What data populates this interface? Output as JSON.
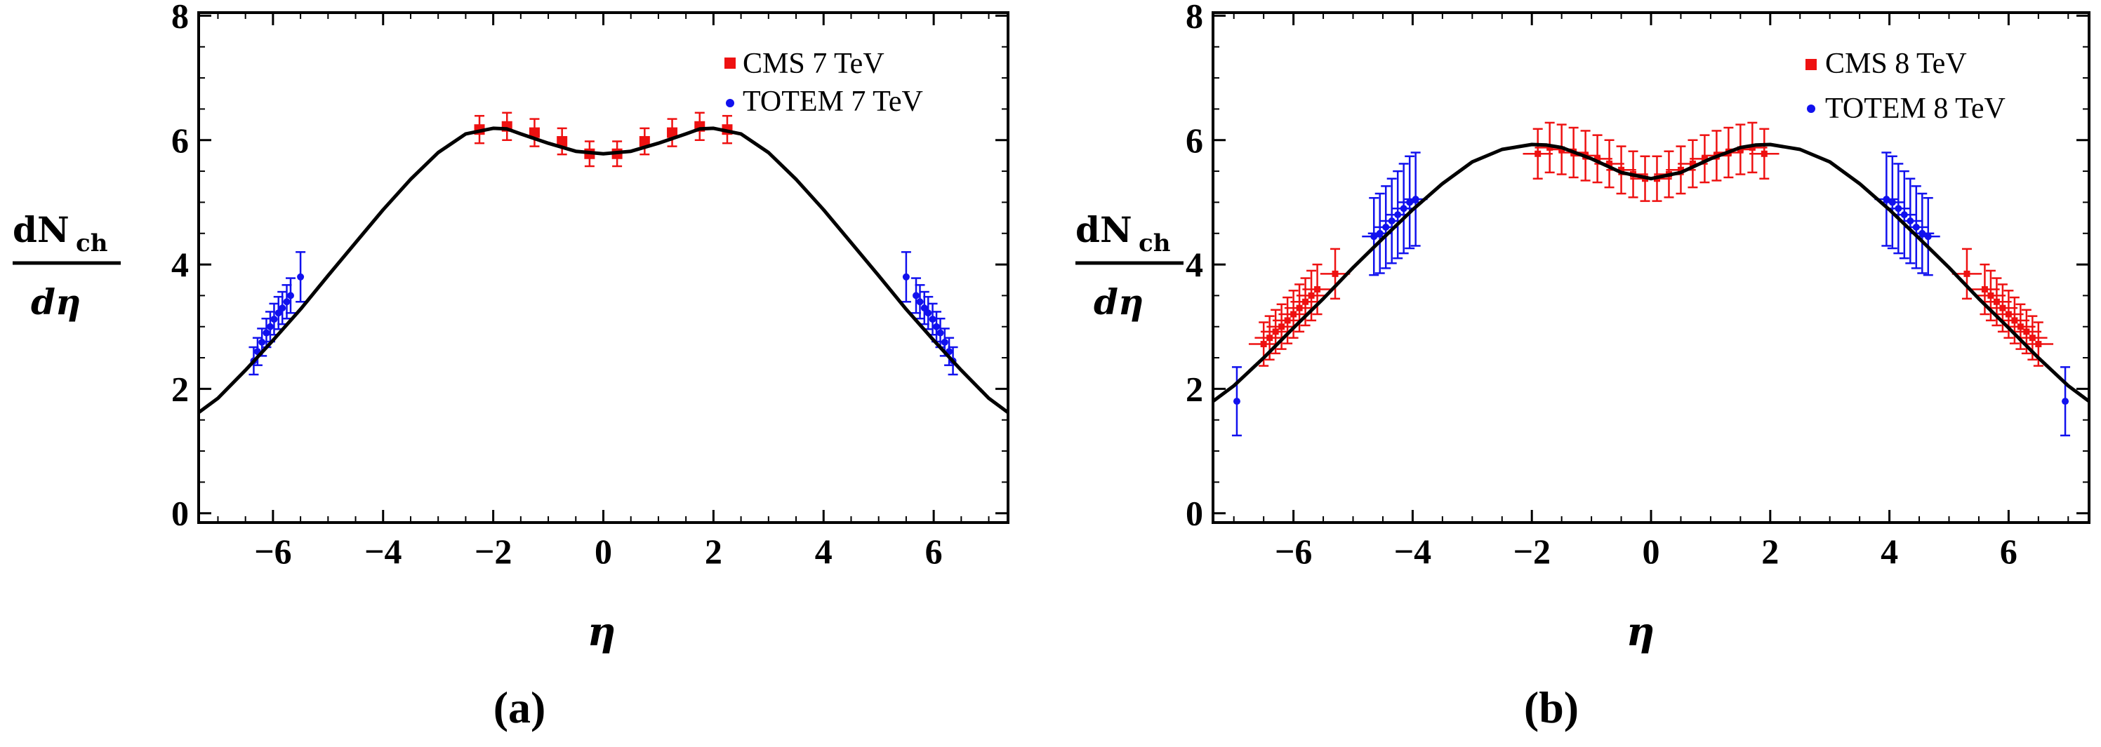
{
  "chart_data": [
    {
      "type": "scatter",
      "panel_label": "(a)",
      "xlabel": "η",
      "ylabel": {
        "main": "dN",
        "sub": "ch",
        "denom": "dη"
      },
      "xlim": [
        -7.35,
        7.35
      ],
      "ylim": [
        -0.15,
        8.05
      ],
      "xticks": [
        -6,
        -4,
        -2,
        0,
        2,
        4,
        6
      ],
      "yticks": [
        0,
        2,
        4,
        6,
        8
      ],
      "xtick_labels": [
        "−6",
        "−4",
        "−2",
        "0",
        "2",
        "4",
        "6"
      ],
      "ytick_labels": [
        "0",
        "2",
        "4",
        "6",
        "8"
      ],
      "legend": {
        "position": "top-right",
        "entries": [
          "CMS 7 TeV",
          "TOTEM 7 TeV"
        ]
      },
      "colors": {
        "cms": "#ee1111",
        "totem": "#1111ee",
        "curve": "#000000"
      },
      "curve": {
        "name": "model",
        "x": [
          -7.35,
          -7,
          -6.5,
          -6,
          -5.5,
          -5,
          -4.5,
          -4,
          -3.5,
          -3,
          -2.5,
          -2,
          -1.75,
          -1.5,
          -1,
          -0.5,
          0,
          0.5,
          1,
          1.5,
          1.75,
          2,
          2.5,
          3,
          3.5,
          4,
          4.5,
          5,
          5.5,
          6,
          6.5,
          7,
          7.35
        ],
        "y": [
          1.62,
          1.85,
          2.3,
          2.78,
          3.28,
          3.82,
          4.35,
          4.88,
          5.37,
          5.8,
          6.1,
          6.19,
          6.18,
          6.1,
          5.95,
          5.82,
          5.78,
          5.82,
          5.95,
          6.1,
          6.18,
          6.19,
          6.1,
          5.8,
          5.37,
          4.88,
          4.35,
          3.82,
          3.28,
          2.78,
          2.3,
          1.85,
          1.62
        ]
      },
      "series": [
        {
          "name": "CMS 7 TeV",
          "marker": "square",
          "x": [
            -2.25,
            -1.75,
            -1.25,
            -0.75,
            -0.25,
            0.25,
            0.75,
            1.25,
            1.75,
            2.25
          ],
          "y": [
            6.17,
            6.22,
            6.12,
            5.98,
            5.78,
            5.78,
            5.98,
            6.12,
            6.22,
            6.17
          ],
          "yerr": [
            0.22,
            0.22,
            0.22,
            0.21,
            0.2,
            0.2,
            0.21,
            0.22,
            0.22,
            0.22
          ],
          "xerr": [
            0,
            0,
            0,
            0,
            0,
            0,
            0,
            0,
            0,
            0
          ]
        },
        {
          "name": "TOTEM 7 TeV",
          "marker": "dot",
          "x": [
            -6.35,
            -6.28,
            -6.2,
            -6.12,
            -6.05,
            -5.98,
            -5.9,
            -5.83,
            -5.75,
            -5.68,
            -5.5,
            5.5,
            5.68,
            5.75,
            5.83,
            5.9,
            5.98,
            6.05,
            6.12,
            6.2,
            6.28,
            6.35
          ],
          "y": [
            2.45,
            2.6,
            2.75,
            2.9,
            3.0,
            3.12,
            3.22,
            3.3,
            3.4,
            3.5,
            3.8,
            3.8,
            3.5,
            3.4,
            3.3,
            3.22,
            3.12,
            3.0,
            2.9,
            2.75,
            2.6,
            2.45
          ],
          "yerr": [
            0.22,
            0.22,
            0.22,
            0.23,
            0.24,
            0.25,
            0.26,
            0.26,
            0.27,
            0.28,
            0.4,
            0.4,
            0.28,
            0.27,
            0.26,
            0.26,
            0.25,
            0.24,
            0.23,
            0.22,
            0.22,
            0.22
          ],
          "xerr": [
            0.05,
            0.05,
            0.05,
            0.05,
            0.05,
            0.05,
            0.05,
            0.05,
            0.05,
            0.05,
            0.05,
            0.05,
            0.05,
            0.05,
            0.05,
            0.05,
            0.05,
            0.05,
            0.05,
            0.05,
            0.05,
            0.05
          ]
        }
      ]
    },
    {
      "type": "scatter",
      "panel_label": "(b)",
      "xlabel": "η",
      "ylabel": {
        "main": "dN",
        "sub": "ch",
        "denom": "dη"
      },
      "xlim": [
        -7.35,
        7.35
      ],
      "ylim": [
        -0.15,
        8.05
      ],
      "xticks": [
        -6,
        -4,
        -2,
        0,
        2,
        4,
        6
      ],
      "yticks": [
        0,
        2,
        4,
        6,
        8
      ],
      "xtick_labels": [
        "−6",
        "−4",
        "−2",
        "0",
        "2",
        "4",
        "6"
      ],
      "ytick_labels": [
        "0",
        "2",
        "4",
        "6",
        "8"
      ],
      "legend": {
        "position": "top-right",
        "entries": [
          "CMS 8 TeV",
          "TOTEM 8 TeV"
        ]
      },
      "colors": {
        "cms": "#ee1111",
        "totem": "#1111ee",
        "curve": "#000000"
      },
      "curve": {
        "name": "model",
        "x": [
          -7.35,
          -7,
          -6.5,
          -6,
          -5.5,
          -5,
          -4.5,
          -4,
          -3.5,
          -3,
          -2.5,
          -2,
          -1.75,
          -1.5,
          -1,
          -0.5,
          0,
          0.5,
          1,
          1.5,
          1.75,
          2,
          2.5,
          3,
          3.5,
          4,
          4.5,
          5,
          5.5,
          6,
          6.5,
          7,
          7.35
        ],
        "y": [
          1.8,
          2.05,
          2.5,
          2.98,
          3.45,
          3.95,
          4.42,
          4.88,
          5.3,
          5.65,
          5.85,
          5.93,
          5.92,
          5.88,
          5.7,
          5.48,
          5.38,
          5.48,
          5.7,
          5.88,
          5.92,
          5.93,
          5.85,
          5.65,
          5.3,
          4.88,
          4.42,
          3.95,
          3.45,
          2.98,
          2.5,
          2.05,
          1.8
        ]
      },
      "series": [
        {
          "name": "CMS 8 TeV",
          "marker": "square",
          "x": [
            -6.5,
            -6.4,
            -6.3,
            -6.2,
            -6.1,
            -6.0,
            -5.9,
            -5.8,
            -5.7,
            -5.6,
            -5.3,
            -1.9,
            -1.7,
            -1.5,
            -1.3,
            -1.1,
            -0.9,
            -0.7,
            -0.5,
            -0.3,
            -0.1,
            0.1,
            0.3,
            0.5,
            0.7,
            0.9,
            1.1,
            1.3,
            1.5,
            1.7,
            1.9,
            5.3,
            5.6,
            5.7,
            5.8,
            5.9,
            6.0,
            6.1,
            6.2,
            6.3,
            6.4,
            6.5
          ],
          "y": [
            2.72,
            2.82,
            2.92,
            3.0,
            3.1,
            3.2,
            3.3,
            3.4,
            3.5,
            3.6,
            3.85,
            5.78,
            5.88,
            5.85,
            5.8,
            5.75,
            5.7,
            5.62,
            5.52,
            5.45,
            5.38,
            5.38,
            5.45,
            5.52,
            5.62,
            5.7,
            5.75,
            5.8,
            5.85,
            5.88,
            5.78,
            3.85,
            3.6,
            3.5,
            3.4,
            3.3,
            3.2,
            3.1,
            3.0,
            2.92,
            2.82,
            2.72
          ],
          "yerr": [
            0.35,
            0.35,
            0.35,
            0.36,
            0.37,
            0.38,
            0.38,
            0.38,
            0.4,
            0.4,
            0.4,
            0.4,
            0.4,
            0.4,
            0.4,
            0.4,
            0.38,
            0.38,
            0.38,
            0.37,
            0.36,
            0.36,
            0.37,
            0.38,
            0.38,
            0.38,
            0.4,
            0.4,
            0.4,
            0.4,
            0.4,
            0.4,
            0.4,
            0.4,
            0.38,
            0.38,
            0.38,
            0.37,
            0.36,
            0.35,
            0.35,
            0.35
          ],
          "xerr": [
            0.25,
            0.25,
            0.25,
            0.25,
            0.25,
            0.25,
            0.25,
            0.25,
            0.25,
            0.25,
            0.25,
            0.25,
            0.25,
            0.25,
            0.25,
            0.25,
            0.25,
            0.25,
            0.25,
            0.25,
            0.25,
            0.25,
            0.25,
            0.25,
            0.25,
            0.25,
            0.25,
            0.25,
            0.25,
            0.25,
            0.25,
            0.25,
            0.25,
            0.25,
            0.25,
            0.25,
            0.25,
            0.25,
            0.25,
            0.25,
            0.25,
            0.25
          ]
        },
        {
          "name": "TOTEM 8 TeV",
          "marker": "dot",
          "x": [
            -6.95,
            -4.65,
            -4.55,
            -4.45,
            -4.35,
            -4.25,
            -4.15,
            -4.05,
            -3.95,
            3.95,
            4.05,
            4.15,
            4.25,
            4.35,
            4.45,
            4.55,
            4.65,
            6.95
          ],
          "y": [
            1.8,
            4.45,
            4.5,
            4.6,
            4.7,
            4.8,
            4.9,
            5.0,
            5.05,
            5.05,
            5.0,
            4.9,
            4.8,
            4.7,
            4.6,
            4.5,
            4.45,
            1.8
          ],
          "yerr": [
            0.55,
            0.62,
            0.64,
            0.66,
            0.68,
            0.7,
            0.72,
            0.74,
            0.75,
            0.75,
            0.74,
            0.72,
            0.7,
            0.68,
            0.66,
            0.64,
            0.62,
            0.55
          ],
          "xerr": [
            0.0,
            0.2,
            0.2,
            0.2,
            0.2,
            0.2,
            0.2,
            0.2,
            0.2,
            0.2,
            0.2,
            0.2,
            0.2,
            0.2,
            0.2,
            0.2,
            0.2,
            0.0
          ]
        }
      ]
    }
  ]
}
